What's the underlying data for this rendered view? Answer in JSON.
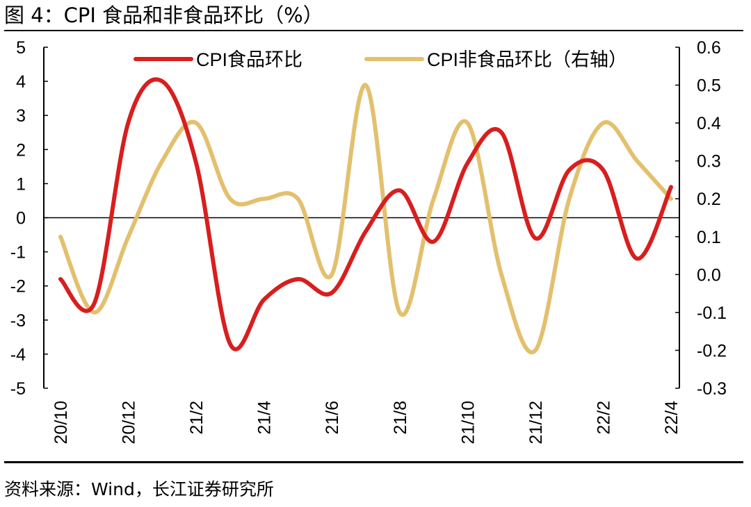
{
  "title": "图 4：CPI 食品和非食品环比（%）",
  "source": "资料来源：Wind，长江证券研究所",
  "colors": {
    "food": "#d81e1e",
    "nonfood": "#e3c06e",
    "axis": "#000000"
  },
  "chart_data": {
    "type": "line",
    "x_tick_labels": [
      "20/10",
      "20/12",
      "21/2",
      "21/4",
      "21/6",
      "21/8",
      "21/10",
      "21/12",
      "22/2",
      "22/4"
    ],
    "x": [
      "20/10",
      "20/11",
      "20/12",
      "21/1",
      "21/2",
      "21/3",
      "21/4",
      "21/5",
      "21/6",
      "21/7",
      "21/8",
      "21/9",
      "21/10",
      "21/11",
      "21/12",
      "22/1",
      "22/2",
      "22/3",
      "22/4"
    ],
    "series": [
      {
        "name": "CPI食品环比",
        "axis": "left",
        "values": [
          -1.8,
          -2.5,
          2.8,
          4.0,
          1.6,
          -3.7,
          -2.4,
          -1.8,
          -2.2,
          -0.4,
          0.8,
          -0.7,
          1.6,
          2.5,
          -0.6,
          1.4,
          1.4,
          -1.2,
          0.9
        ]
      },
      {
        "name": "CPI非食品环比（右轴）",
        "axis": "right",
        "values": [
          0.1,
          -0.1,
          0.1,
          0.3,
          0.4,
          0.2,
          0.2,
          0.2,
          0.0,
          0.5,
          -0.1,
          0.2,
          0.4,
          0.0,
          -0.2,
          0.2,
          0.4,
          0.3,
          0.2
        ]
      }
    ],
    "left_axis": {
      "min": -5,
      "max": 5,
      "ticks": [
        "5",
        "4",
        "3",
        "2",
        "1",
        "0",
        "-1",
        "-2",
        "-3",
        "-4",
        "-5"
      ]
    },
    "right_axis": {
      "min": -0.3,
      "max": 0.6,
      "ticks": [
        "0.6",
        "0.5",
        "0.4",
        "0.3",
        "0.2",
        "0.1",
        "0.0",
        "-0.1",
        "-0.2",
        "-0.3"
      ]
    },
    "legend": [
      "CPI食品环比",
      "CPI非食品环比（右轴）"
    ],
    "legend_position": "top",
    "grid": false
  }
}
